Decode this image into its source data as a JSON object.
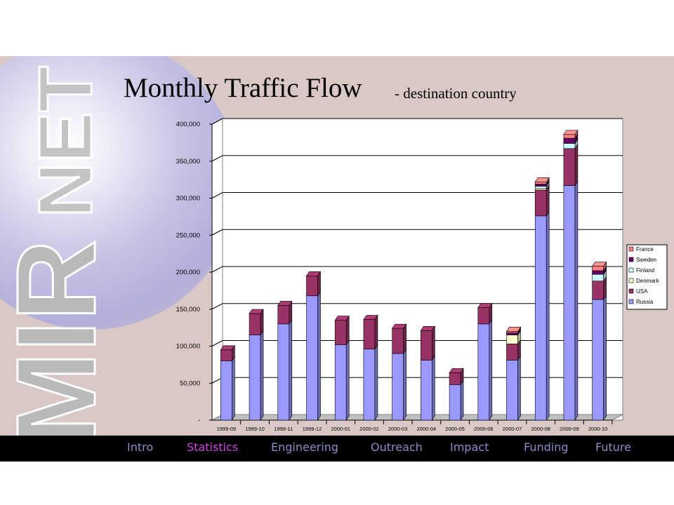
{
  "title": "Monthly Traffic Flow",
  "subtitle": "- destination country",
  "nav": {
    "items": [
      {
        "label": "Intro",
        "active": false
      },
      {
        "label": "Statistics",
        "active": true
      },
      {
        "label": "Engineering",
        "active": false
      },
      {
        "label": "Outreach",
        "active": false
      },
      {
        "label": "Impact",
        "active": false
      },
      {
        "label": "Funding",
        "active": false
      },
      {
        "label": "Future",
        "active": false
      }
    ]
  },
  "colors": {
    "Russia": "#9999ff",
    "USA": "#993366",
    "Finland": "#ccffff",
    "Denmark": "#ffffcc",
    "Sweden": "#660066",
    "France": "#ff8080",
    "nav_text": "#8a8ac8",
    "nav_active": "#cc44dd"
  },
  "chart_data": {
    "type": "bar",
    "stacked": true,
    "categories": [
      "1999-09",
      "1999-10",
      "1999-11",
      "1999-12",
      "2000-01",
      "2000-02",
      "2000-03",
      "2000-04",
      "2000-05",
      "2000-06",
      "2000-07",
      "2000-08",
      "2000-09",
      "2000-10"
    ],
    "series": [
      {
        "name": "Russia",
        "values": [
          80000,
          115000,
          130000,
          168000,
          102000,
          96000,
          90000,
          81000,
          48000,
          130000,
          81000,
          276000,
          317000,
          163000
        ]
      },
      {
        "name": "USA",
        "values": [
          15000,
          29000,
          25000,
          27000,
          33000,
          40000,
          34000,
          40000,
          16000,
          22000,
          22000,
          35000,
          50000,
          25000
        ]
      },
      {
        "name": "Denmark",
        "values": [
          0,
          0,
          0,
          0,
          0,
          0,
          0,
          0,
          0,
          0,
          12000,
          2000,
          0,
          0
        ]
      },
      {
        "name": "Finland",
        "values": [
          0,
          0,
          0,
          0,
          0,
          0,
          0,
          0,
          0,
          0,
          0,
          3000,
          7000,
          9000
        ]
      },
      {
        "name": "Sweden",
        "values": [
          0,
          0,
          0,
          0,
          0,
          0,
          0,
          0,
          0,
          0,
          3000,
          3000,
          7000,
          5000
        ]
      },
      {
        "name": "France",
        "values": [
          0,
          0,
          0,
          0,
          0,
          0,
          0,
          0,
          0,
          0,
          2000,
          3000,
          5000,
          6000
        ]
      }
    ],
    "legend_order": [
      "France",
      "Sweden",
      "Finland",
      "Denmark",
      "USA",
      "Russia"
    ],
    "ylim": [
      0,
      400000
    ],
    "yticks": [
      "-",
      "50,000",
      "100,000",
      "150,000",
      "200,000",
      "250,000",
      "300,000",
      "350,000",
      "400,000"
    ],
    "grid": true,
    "legend_position": "right",
    "view": "3d"
  }
}
